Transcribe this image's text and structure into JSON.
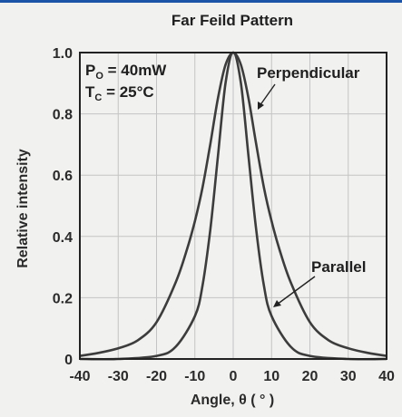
{
  "chart_data": {
    "type": "line",
    "title": "Far Feild Pattern",
    "xlabel": "Angle, θ ( ° )",
    "ylabel": "Relative intensity",
    "xlim": [
      -40,
      40
    ],
    "ylim": [
      0,
      1.0
    ],
    "x_ticks": [
      "-40",
      "-30",
      "-20",
      "-10",
      "0",
      "10",
      "20",
      "30",
      "40"
    ],
    "y_ticks": [
      "0",
      "0.2",
      "0.4",
      "0.6",
      "0.8",
      "1.0"
    ],
    "grid": true,
    "conditions": {
      "po_main": "P",
      "po_sub": "O",
      "po_value": " = 40mW",
      "tc_main": "T",
      "tc_sub": "C",
      "tc_value": " = 25°C"
    },
    "series": [
      {
        "name": "Perpendicular",
        "x": [
          -40,
          -35,
          -30,
          -25,
          -20,
          -15,
          -12,
          -10,
          -8,
          -6,
          -4,
          -2,
          0,
          2,
          4,
          6,
          8,
          10,
          12,
          15,
          20,
          25,
          30,
          35,
          40
        ],
        "y": [
          0.01,
          0.02,
          0.035,
          0.06,
          0.12,
          0.25,
          0.36,
          0.45,
          0.56,
          0.7,
          0.85,
          0.96,
          1.0,
          0.96,
          0.85,
          0.7,
          0.56,
          0.45,
          0.36,
          0.25,
          0.12,
          0.06,
          0.035,
          0.02,
          0.01
        ]
      },
      {
        "name": "Parallel",
        "x": [
          -40,
          -30,
          -20,
          -15,
          -10,
          -8,
          -6,
          -4,
          -2,
          0,
          2,
          4,
          6,
          8,
          10,
          15,
          20,
          30,
          40
        ],
        "y": [
          0.0,
          0.0,
          0.01,
          0.04,
          0.14,
          0.24,
          0.42,
          0.66,
          0.9,
          1.0,
          0.9,
          0.66,
          0.42,
          0.24,
          0.14,
          0.04,
          0.01,
          0.0,
          0.0
        ]
      }
    ]
  },
  "colors": {
    "line": "#3c3c3c",
    "grid": "#c4c4c4",
    "frame": "#222222",
    "accent": "#1c55a8"
  }
}
